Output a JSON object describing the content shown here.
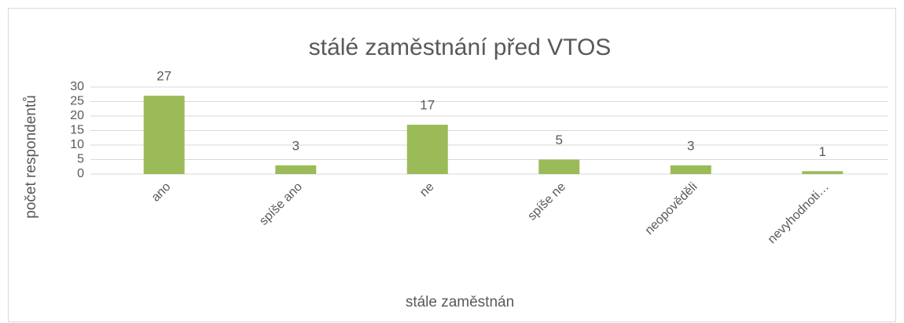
{
  "chart_data": {
    "type": "bar",
    "title": "stálé zaměstnání před VTOS",
    "x_label": "stále zaměstnán",
    "y_label": "počet respondentů",
    "categories": [
      "ano",
      "spíše ano",
      "ne",
      "spíše ne",
      "neopověděli",
      "nevyhodnoti…"
    ],
    "values": [
      27,
      3,
      17,
      5,
      3,
      1
    ],
    "color": "#9bbb59",
    "ylim": [
      0,
      30
    ],
    "yticks": [
      0,
      5,
      10,
      15,
      20,
      25,
      30
    ],
    "grid": true,
    "data_labels": true
  }
}
